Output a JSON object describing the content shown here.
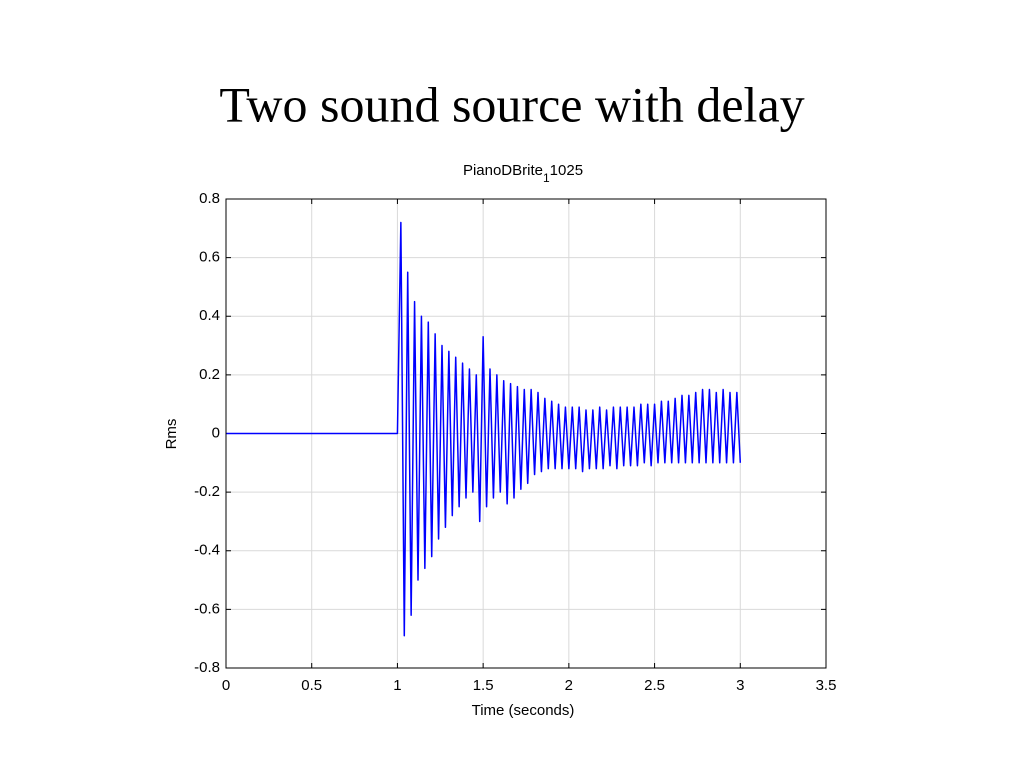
{
  "slide_title": "Two sound source with delay",
  "chart_data": {
    "type": "line",
    "title": "PianoDBrite",
    "title_subscript": "1",
    "title_suffix": "1025",
    "x_label": "Time (seconds)",
    "y_label": "Rms",
    "color": "#0000ff",
    "grid": true,
    "xlim": [
      0,
      3.5
    ],
    "xticks": [
      0,
      0.5,
      1,
      1.5,
      2,
      2.5,
      3,
      3.5
    ],
    "ylim": [
      -0.8,
      0.8
    ],
    "yticks": [
      -0.8,
      -0.6,
      -0.4,
      -0.2,
      0,
      0.2,
      0.4,
      0.6,
      0.8
    ],
    "x": [
      0,
      1.0,
      1.02,
      1.04,
      1.06,
      1.08,
      1.1,
      1.12,
      1.14,
      1.16,
      1.18,
      1.2,
      1.22,
      1.24,
      1.26,
      1.28,
      1.3,
      1.32,
      1.34,
      1.36,
      1.38,
      1.4,
      1.42,
      1.44,
      1.46,
      1.48,
      1.5,
      1.52,
      1.54,
      1.56,
      1.58,
      1.6,
      1.62,
      1.64,
      1.66,
      1.68,
      1.7,
      1.72,
      1.74,
      1.76,
      1.78,
      1.8,
      1.82,
      1.84,
      1.86,
      1.88,
      1.9,
      1.92,
      1.94,
      1.96,
      1.98,
      2.0,
      2.02,
      2.04,
      2.06,
      2.08,
      2.1,
      2.12,
      2.14,
      2.16,
      2.18,
      2.2,
      2.22,
      2.24,
      2.26,
      2.28,
      2.3,
      2.32,
      2.34,
      2.36,
      2.38,
      2.4,
      2.42,
      2.44,
      2.46,
      2.48,
      2.5,
      2.52,
      2.54,
      2.56,
      2.58,
      2.6,
      2.62,
      2.64,
      2.66,
      2.68,
      2.7,
      2.72,
      2.74,
      2.76,
      2.78,
      2.8,
      2.82,
      2.84,
      2.86,
      2.88,
      2.9,
      2.92,
      2.94,
      2.96,
      2.98,
      3.0
    ],
    "values": [
      0,
      0,
      0.72,
      -0.69,
      0.55,
      -0.62,
      0.45,
      -0.5,
      0.4,
      -0.46,
      0.38,
      -0.42,
      0.34,
      -0.36,
      0.3,
      -0.32,
      0.28,
      -0.28,
      0.26,
      -0.25,
      0.24,
      -0.22,
      0.22,
      -0.2,
      0.2,
      -0.3,
      0.33,
      -0.25,
      0.22,
      -0.22,
      0.2,
      -0.2,
      0.18,
      -0.24,
      0.17,
      -0.22,
      0.16,
      -0.19,
      0.15,
      -0.17,
      0.15,
      -0.14,
      0.14,
      -0.13,
      0.12,
      -0.12,
      0.11,
      -0.12,
      0.1,
      -0.12,
      0.09,
      -0.12,
      0.09,
      -0.12,
      0.09,
      -0.13,
      0.08,
      -0.12,
      0.08,
      -0.12,
      0.09,
      -0.12,
      0.08,
      -0.11,
      0.09,
      -0.12,
      0.09,
      -0.11,
      0.09,
      -0.11,
      0.09,
      -0.11,
      0.1,
      -0.1,
      0.1,
      -0.11,
      0.1,
      -0.1,
      0.11,
      -0.1,
      0.11,
      -0.1,
      0.12,
      -0.1,
      0.13,
      -0.1,
      0.13,
      -0.1,
      0.14,
      -0.1,
      0.15,
      -0.1,
      0.15,
      -0.1,
      0.14,
      -0.1,
      0.15,
      -0.1,
      0.14,
      -0.1,
      0.14,
      -0.1
    ]
  }
}
